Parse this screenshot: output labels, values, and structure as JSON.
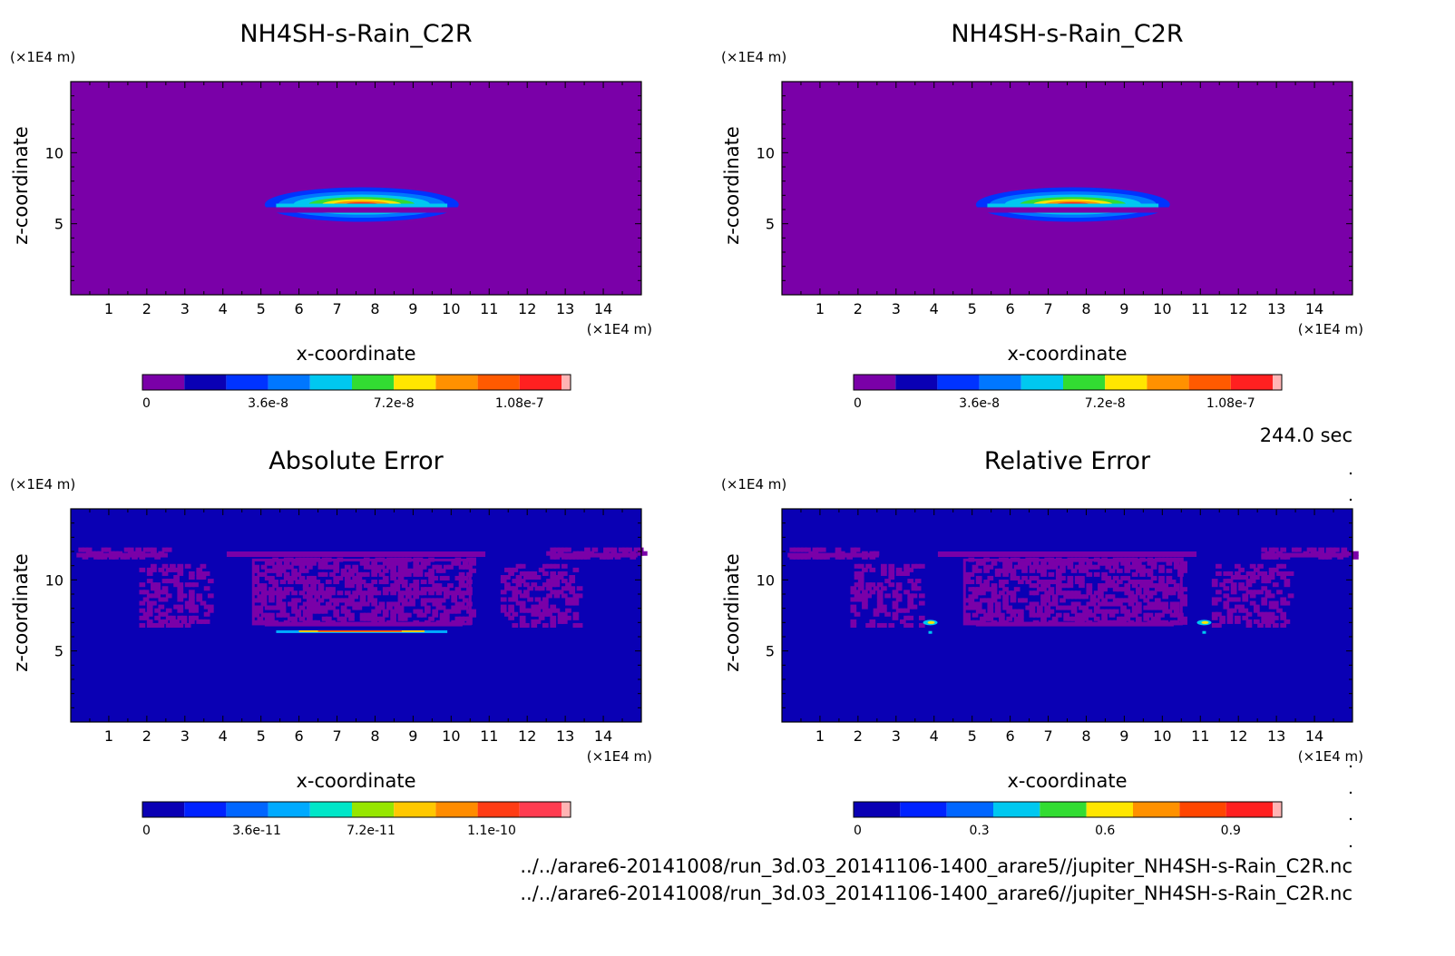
{
  "time_label": "244.0 sec",
  "files": [
    "../../arare6-20141008/run_3d.03_20141106-1400_arare5//jupiter_NH4SH-s-Rain_C2R.nc",
    "../../arare6-20141008/run_3d.03_20141106-1400_arare6//jupiter_NH4SH-s-Rain_C2R.nc"
  ],
  "colors": {
    "purple": "#7a00a8",
    "navy": "#0a00b4",
    "blue": "#0044ff",
    "sky": "#00c8f0",
    "green": "#32dc32",
    "yellow": "#ffe600",
    "orange": "#ff9100",
    "red": "#ff2d2d",
    "pink": "#ffb4b4"
  },
  "chart_data": [
    {
      "type": "heatmap",
      "title": "NH4SH-s-Rain_C2R",
      "xlabel": "x-coordinate",
      "ylabel": "z-coordinate",
      "x_unit": "(×1E4 m)",
      "y_unit": "(×1E4 m)",
      "xlim": [
        0,
        15
      ],
      "ylim": [
        0,
        15
      ],
      "x_ticks": [
        "1",
        "2",
        "3",
        "4",
        "5",
        "6",
        "7",
        "8",
        "9",
        "10",
        "11",
        "12",
        "13",
        "14"
      ],
      "y_ticks": [
        "5",
        "10"
      ],
      "colorbar": {
        "colors": [
          "#7a00a8",
          "#0a00b4",
          "#0033ff",
          "#0077ff",
          "#00c8f0",
          "#32dc32",
          "#ffe600",
          "#ff9100",
          "#ff5a00",
          "#ff2020",
          "#ffb4b4"
        ],
        "labels": [
          "0",
          "3.6e-8",
          "7.2e-8",
          "1.08e-7"
        ],
        "label_values": [
          0,
          3.6e-08,
          7.2e-08,
          1.08e-07
        ],
        "range": [
          0,
          1.2e-07
        ]
      },
      "field": "rain_blob"
    },
    {
      "type": "heatmap",
      "title": "NH4SH-s-Rain_C2R",
      "xlabel": "x-coordinate",
      "ylabel": "z-coordinate",
      "x_unit": "(×1E4 m)",
      "y_unit": "(×1E4 m)",
      "xlim": [
        0,
        15
      ],
      "ylim": [
        0,
        15
      ],
      "x_ticks": [
        "1",
        "2",
        "3",
        "4",
        "5",
        "6",
        "7",
        "8",
        "9",
        "10",
        "11",
        "12",
        "13",
        "14"
      ],
      "y_ticks": [
        "5",
        "10"
      ],
      "colorbar": {
        "colors": [
          "#7a00a8",
          "#0a00b4",
          "#0033ff",
          "#0077ff",
          "#00c8f0",
          "#32dc32",
          "#ffe600",
          "#ff9100",
          "#ff5a00",
          "#ff2020",
          "#ffb4b4"
        ],
        "labels": [
          "0",
          "3.6e-8",
          "7.2e-8",
          "1.08e-7"
        ],
        "label_values": [
          0,
          3.6e-08,
          7.2e-08,
          1.08e-07
        ],
        "range": [
          0,
          1.2e-07
        ]
      },
      "field": "rain_blob"
    },
    {
      "type": "heatmap",
      "title": "Absolute Error",
      "xlabel": "x-coordinate",
      "ylabel": "z-coordinate",
      "x_unit": "(×1E4 m)",
      "y_unit": "(×1E4 m)",
      "xlim": [
        0,
        15
      ],
      "ylim": [
        0,
        15
      ],
      "x_ticks": [
        "1",
        "2",
        "3",
        "4",
        "5",
        "6",
        "7",
        "8",
        "9",
        "10",
        "11",
        "12",
        "13",
        "14"
      ],
      "y_ticks": [
        "5",
        "10"
      ],
      "colorbar": {
        "colors": [
          "#0a00b4",
          "#0022ff",
          "#0066ff",
          "#00aaff",
          "#00e6c8",
          "#96e600",
          "#ffc800",
          "#ff8c00",
          "#ff3c14",
          "#ff3c50",
          "#ffb4b4"
        ],
        "labels": [
          "0",
          "3.6e-11",
          "7.2e-11",
          "1.1e-10"
        ],
        "label_values": [
          0,
          3.6e-11,
          7.2e-11,
          1.1e-10
        ],
        "range": [
          0,
          1.32e-10
        ]
      },
      "field": "abs_error"
    },
    {
      "type": "heatmap",
      "title": "Relative Error",
      "xlabel": "x-coordinate",
      "ylabel": "z-coordinate",
      "x_unit": "(×1E4 m)",
      "y_unit": "(×1E4 m)",
      "xlim": [
        0,
        15
      ],
      "ylim": [
        0,
        15
      ],
      "x_ticks": [
        "1",
        "2",
        "3",
        "4",
        "5",
        "6",
        "7",
        "8",
        "9",
        "10",
        "11",
        "12",
        "13",
        "14"
      ],
      "y_ticks": [
        "5",
        "10"
      ],
      "colorbar": {
        "colors": [
          "#0a00b4",
          "#0022ff",
          "#0066ff",
          "#00c8f0",
          "#32dc32",
          "#ffe600",
          "#ff9100",
          "#ff4600",
          "#ff2020",
          "#ffb4b4"
        ],
        "labels": [
          "0",
          "0.3",
          "0.6",
          "0.9"
        ],
        "label_values": [
          0,
          0.3,
          0.6,
          0.9
        ],
        "range": [
          0,
          1.0
        ]
      },
      "field": "rel_error"
    }
  ]
}
